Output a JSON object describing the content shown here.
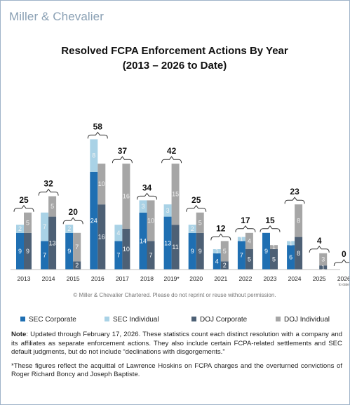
{
  "brand": "Miller & Chevalier",
  "chart_data": {
    "type": "bar",
    "stacked": true,
    "title_line1": "Resolved FCPA Enforcement Actions By Year",
    "title_line2": "(2013 – 2026 to Date)",
    "categories": [
      "2013",
      "2014",
      "2015",
      "2016",
      "2017",
      "2018",
      "2019*",
      "2020",
      "2021",
      "2022",
      "2023",
      "2024",
      "2025",
      "2026"
    ],
    "category_sublabels": {
      "2026": "to date"
    },
    "series": [
      {
        "name": "SEC Corporate",
        "color": "#1f6fb2"
      },
      {
        "name": "SEC Individual",
        "color": "#a9d2e6"
      },
      {
        "name": "DOJ Corporate",
        "color": "#4d6075"
      },
      {
        "name": "DOJ Individual",
        "color": "#a6a6a6"
      }
    ],
    "groups": [
      {
        "name": "SEC",
        "series": [
          "SEC Corporate",
          "SEC Individual"
        ]
      },
      {
        "name": "DOJ",
        "series": [
          "DOJ Corporate",
          "DOJ Individual"
        ]
      }
    ],
    "values": {
      "SEC Corporate": [
        9,
        7,
        9,
        24,
        7,
        14,
        13,
        9,
        4,
        7,
        9,
        6,
        0,
        0
      ],
      "SEC Individual": [
        2,
        7,
        2,
        8,
        4,
        3,
        3,
        2,
        1,
        1,
        0,
        1,
        0,
        0
      ],
      "DOJ Corporate": [
        9,
        13,
        2,
        16,
        10,
        7,
        11,
        9,
        2,
        5,
        5,
        8,
        1,
        0
      ],
      "DOJ Individual": [
        5,
        5,
        7,
        10,
        16,
        10,
        15,
        5,
        5,
        4,
        1,
        8,
        3,
        0
      ]
    },
    "totals": [
      25,
      32,
      20,
      58,
      37,
      34,
      42,
      25,
      12,
      17,
      15,
      23,
      4,
      0
    ],
    "ylim": [
      0,
      45
    ],
    "grid": false,
    "legend_position": "bottom"
  },
  "copyright": "© Miller & Chevalier Chartered. Please do not reprint or reuse without permission.",
  "note_label": "Note",
  "note_text": ": Updated through February 17, 2026. These statistics count each distinct resolution with a company and its affiliates as separate enforcement actions. They also include certain FCPA-related settlements and SEC default judgments, but do not include “declinations with disgorgements.”",
  "footnote": "*These figures reflect the acquittal of Lawrence Hoskins on FCPA charges and the overturned convictions of Roger Richard Boncy and Joseph Baptiste."
}
